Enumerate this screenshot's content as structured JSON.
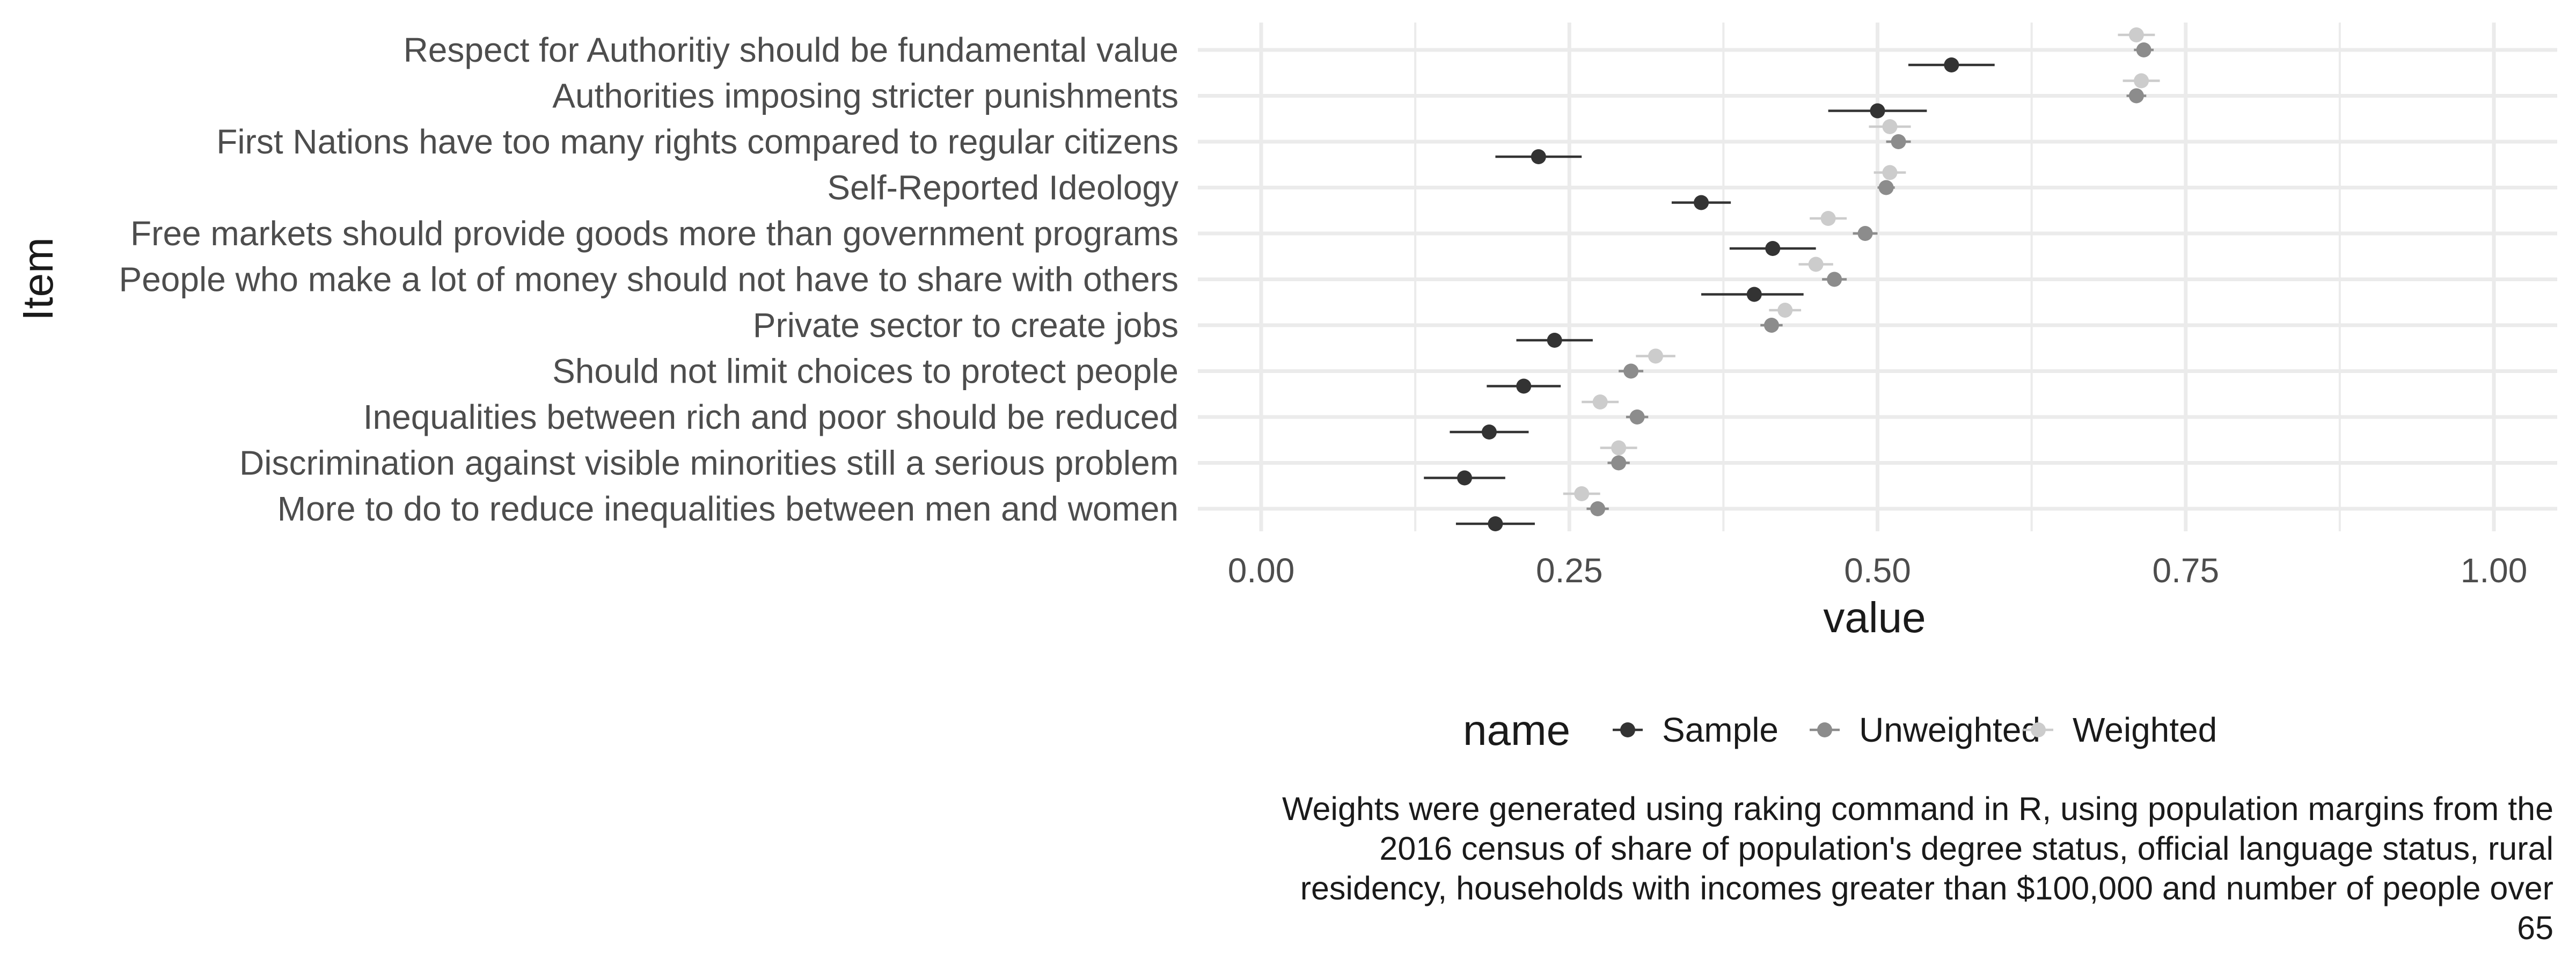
{
  "chart_data": {
    "type": "scatter",
    "title": "",
    "xlabel": "value",
    "ylabel": "Item",
    "xlim": [
      0,
      1
    ],
    "xticks": [
      "0.00",
      "0.25",
      "0.50",
      "0.75",
      "1.00"
    ],
    "xtick_values": [
      0,
      0.25,
      0.5,
      0.75,
      1
    ],
    "grid": true,
    "legend": {
      "title": "name",
      "position": "bottom"
    },
    "categories": [
      "Respect for Authoritiy should be fundamental value",
      "Authorities imposing stricter punishments",
      "First Nations have too many rights compared to regular citizens",
      "Self-Reported Ideology",
      "Free markets should provide goods more than government programs",
      "People who make a lot of money should not have to share with others",
      "Private sector to create jobs",
      "Should not limit choices to protect people",
      "Inequalities between rich and poor should be reduced",
      "Discrimination against visible minorities still a serious problem",
      "More to do to reduce inequalities between men and women"
    ],
    "series": [
      {
        "name": "Sample",
        "color": "#333333",
        "values": [
          0.56,
          0.5,
          0.225,
          0.357,
          0.415,
          0.4,
          0.238,
          0.213,
          0.185,
          0.165,
          0.19
        ],
        "lower": [
          0.525,
          0.46,
          0.19,
          0.333,
          0.38,
          0.357,
          0.207,
          0.183,
          0.153,
          0.132,
          0.158
        ],
        "upper": [
          0.595,
          0.54,
          0.26,
          0.381,
          0.45,
          0.44,
          0.269,
          0.243,
          0.217,
          0.198,
          0.222
        ]
      },
      {
        "name": "Unweighted",
        "color": "#8c8c8c",
        "values": [
          0.716,
          0.71,
          0.517,
          0.507,
          0.49,
          0.465,
          0.414,
          0.3,
          0.305,
          0.29,
          0.273
        ],
        "lower": [
          0.708,
          0.702,
          0.507,
          0.5,
          0.48,
          0.455,
          0.405,
          0.29,
          0.296,
          0.281,
          0.264
        ],
        "upper": [
          0.724,
          0.718,
          0.527,
          0.514,
          0.5,
          0.475,
          0.423,
          0.31,
          0.314,
          0.299,
          0.282
        ]
      },
      {
        "name": "Weighted",
        "color": "#cccccc",
        "values": [
          0.71,
          0.714,
          0.51,
          0.51,
          0.46,
          0.45,
          0.425,
          0.32,
          0.275,
          0.29,
          0.26
        ],
        "lower": [
          0.695,
          0.699,
          0.493,
          0.497,
          0.445,
          0.436,
          0.412,
          0.304,
          0.26,
          0.275,
          0.245
        ],
        "upper": [
          0.725,
          0.729,
          0.527,
          0.523,
          0.475,
          0.464,
          0.438,
          0.336,
          0.29,
          0.305,
          0.275
        ]
      }
    ],
    "caption": "Weights were generated using raking command in R, using population margins from the 2016 census of share of population's degree status, official language status, rural residency, households with incomes greater than $100,000 and number of people over 65"
  }
}
